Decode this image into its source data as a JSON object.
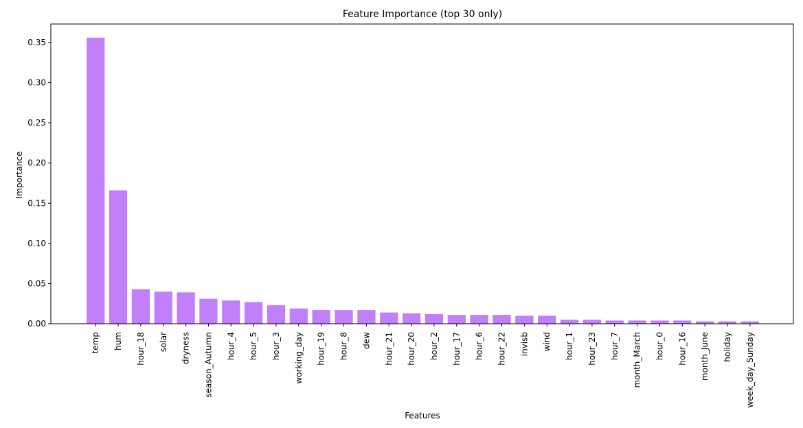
{
  "chart_data": {
    "type": "bar",
    "title": "Feature Importance (top 30 only)",
    "xlabel": "Features",
    "ylabel": "Importance",
    "ylim": [
      0,
      0.373
    ],
    "yticks": [
      "0.00",
      "0.05",
      "0.10",
      "0.15",
      "0.20",
      "0.25",
      "0.30",
      "0.35"
    ],
    "grid": false,
    "bar_color": "#c27ffa",
    "categories": [
      "temp",
      "hum",
      "hour_18",
      "solar",
      "dryness",
      "season_Autumn",
      "hour_4",
      "hour_5",
      "hour_3",
      "working_day",
      "hour_19",
      "hour_8",
      "dew",
      "hour_21",
      "hour_20",
      "hour_2",
      "hour_17",
      "hour_6",
      "hour_22",
      "invisb",
      "wind",
      "hour_1",
      "hour_23",
      "hour_7",
      "month_March",
      "hour_0",
      "hour_16",
      "month_June",
      "holiday",
      "week_day_Sunday"
    ],
    "values": [
      0.356,
      0.166,
      0.043,
      0.04,
      0.039,
      0.031,
      0.029,
      0.027,
      0.023,
      0.019,
      0.017,
      0.017,
      0.017,
      0.014,
      0.013,
      0.012,
      0.011,
      0.011,
      0.011,
      0.01,
      0.01,
      0.005,
      0.005,
      0.004,
      0.004,
      0.004,
      0.004,
      0.003,
      0.003,
      0.003
    ]
  }
}
